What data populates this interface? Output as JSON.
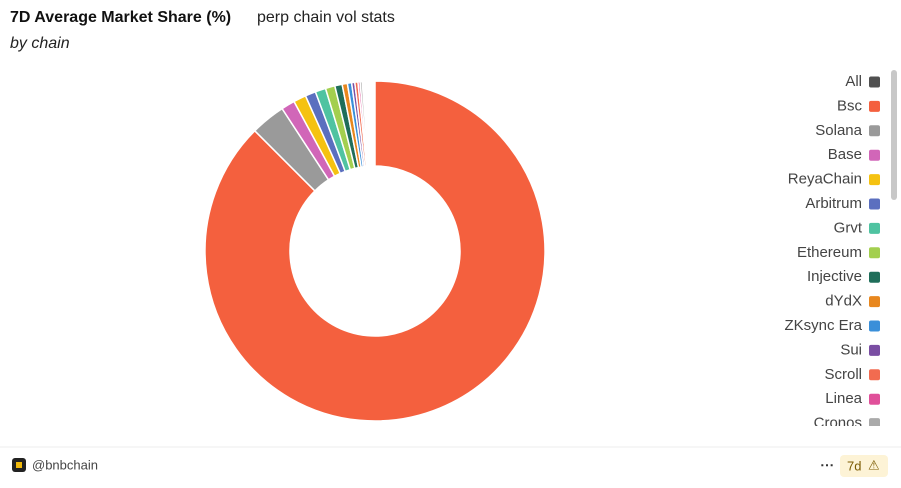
{
  "chart_data": {
    "type": "donut",
    "title": "7D Average Market Share (%)",
    "query_name": "perp chain vol stats",
    "subtitle": "by chain",
    "categories": [
      "All",
      "Bsc",
      "Solana",
      "Base",
      "ReyaChain",
      "Arbitrum",
      "Grvt",
      "Ethereum",
      "Injective",
      "dYdX",
      "ZKsync Era",
      "Sui",
      "Scroll",
      "Linea",
      "Cronos"
    ],
    "values": [
      0,
      87.5,
      3.3,
      1.3,
      1.2,
      1.0,
      1.0,
      0.9,
      0.7,
      0.5,
      0.4,
      0.3,
      0.3,
      0.2,
      0.2
    ],
    "colors": [
      "#505050",
      "#f4603e",
      "#9a9a9a",
      "#d166b8",
      "#f5c211",
      "#5b6fbf",
      "#4fc3a1",
      "#a3cf4f",
      "#1f6e5a",
      "#e8871e",
      "#3a8fd9",
      "#7a4ea3",
      "#f26b50",
      "#e0509a",
      "#aaaaaa"
    ],
    "legend": "right"
  },
  "footer": {
    "author": "@bnbchain",
    "period": "7d"
  }
}
